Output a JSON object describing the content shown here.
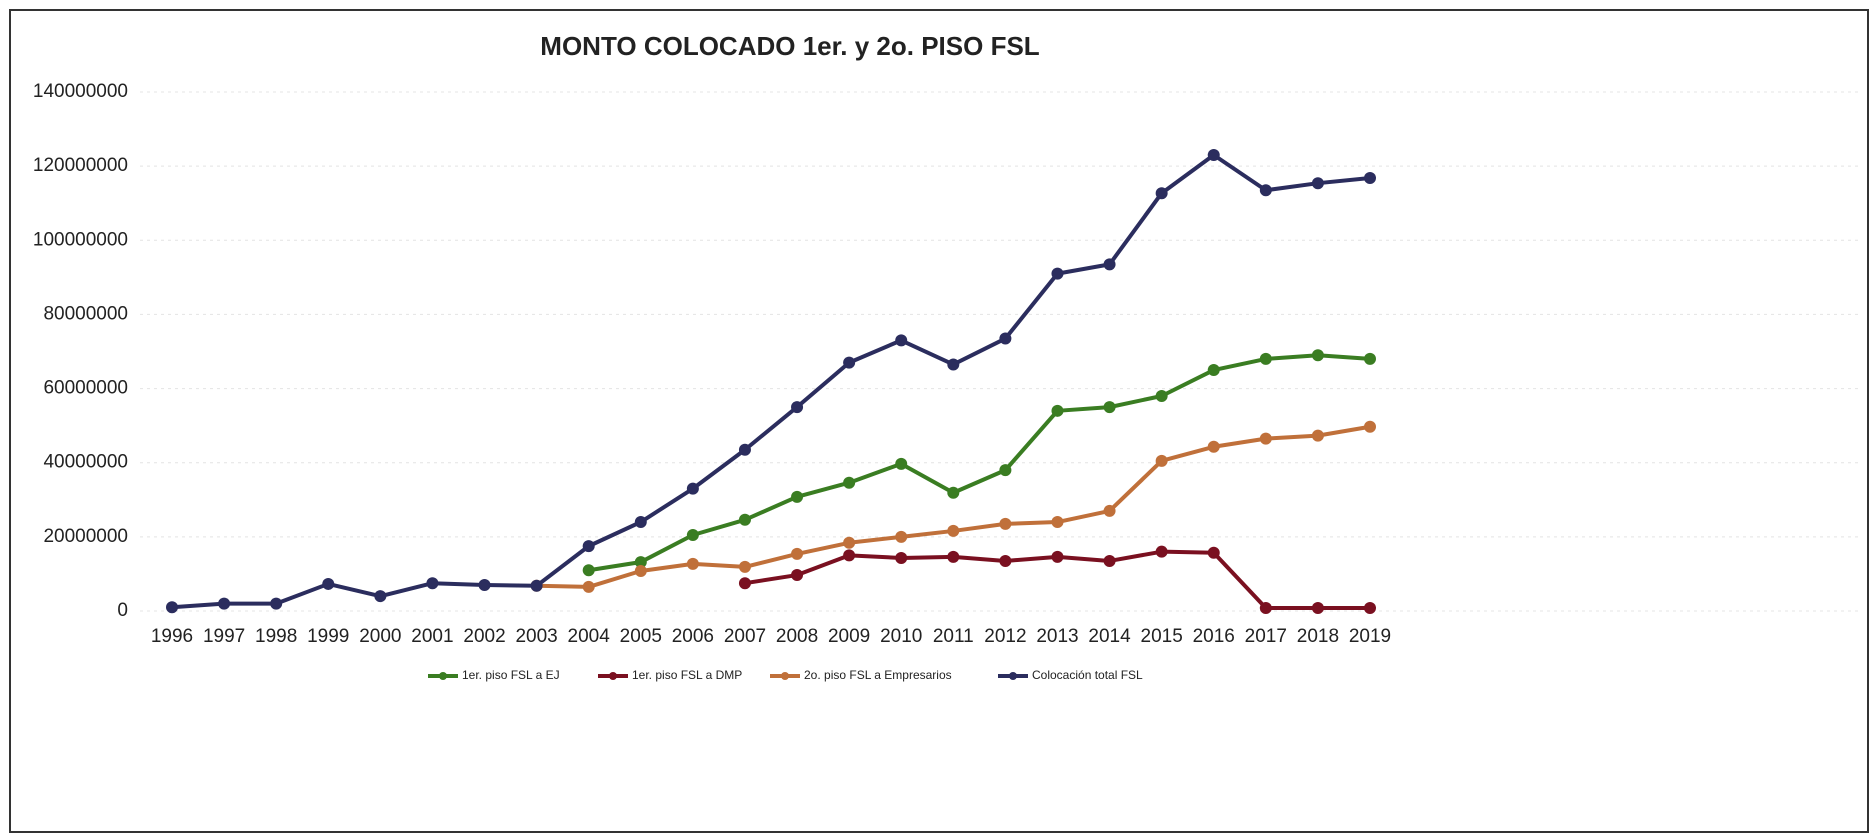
{
  "chart_data": {
    "type": "line",
    "title": "MONTO COLOCADO 1er. y 2o. PISO FSL",
    "categories": [
      "1996",
      "1997",
      "1998",
      "1999",
      "2000",
      "2001",
      "2002",
      "2003",
      "2004",
      "2005",
      "2006",
      "2007",
      "2008",
      "2009",
      "2010",
      "2011",
      "2012",
      "2013",
      "2014",
      "2015",
      "2016",
      "2017",
      "2018",
      "2019"
    ],
    "series": [
      {
        "name": "1er. piso FSL a EJ",
        "color": "#3a7d22",
        "values": [
          null,
          null,
          null,
          null,
          null,
          null,
          null,
          null,
          11000000,
          13200000,
          20500000,
          24600000,
          30800000,
          34600000,
          39700000,
          31900000,
          38000000,
          54000000,
          55000000,
          58000000,
          65000000,
          68000000,
          69000000,
          68000000
        ]
      },
      {
        "name": "1er. piso FSL a DMP",
        "color": "#7a1020",
        "values": [
          null,
          null,
          null,
          null,
          null,
          null,
          null,
          null,
          null,
          null,
          null,
          7500000,
          9700000,
          15000000,
          14300000,
          14600000,
          13500000,
          14600000,
          13500000,
          16000000,
          15700000,
          800000,
          800000,
          800000
        ]
      },
      {
        "name": "2o. piso FSL a Empresarios",
        "color": "#c0703a",
        "values": [
          null,
          null,
          null,
          null,
          null,
          null,
          null,
          6800000,
          6500000,
          10800000,
          12700000,
          11900000,
          15400000,
          18400000,
          20000000,
          21600000,
          23500000,
          24000000,
          27000000,
          40500000,
          44300000,
          46500000,
          47300000,
          49700000
        ]
      },
      {
        "name": "Colocación total  FSL",
        "color": "#2b2d5e",
        "values": [
          1000000,
          2000000,
          2000000,
          7300000,
          4000000,
          7500000,
          7000000,
          6800000,
          17500000,
          24000000,
          33000000,
          43500000,
          55000000,
          67000000,
          73000000,
          66500000,
          73500000,
          91000000,
          93500000,
          112700000,
          123000000,
          113500000,
          115400000,
          116800000
        ]
      }
    ],
    "ylim": [
      0,
      140000000
    ],
    "yticks": [
      0,
      20000000,
      40000000,
      60000000,
      80000000,
      100000000,
      120000000,
      140000000
    ],
    "grid": true
  }
}
